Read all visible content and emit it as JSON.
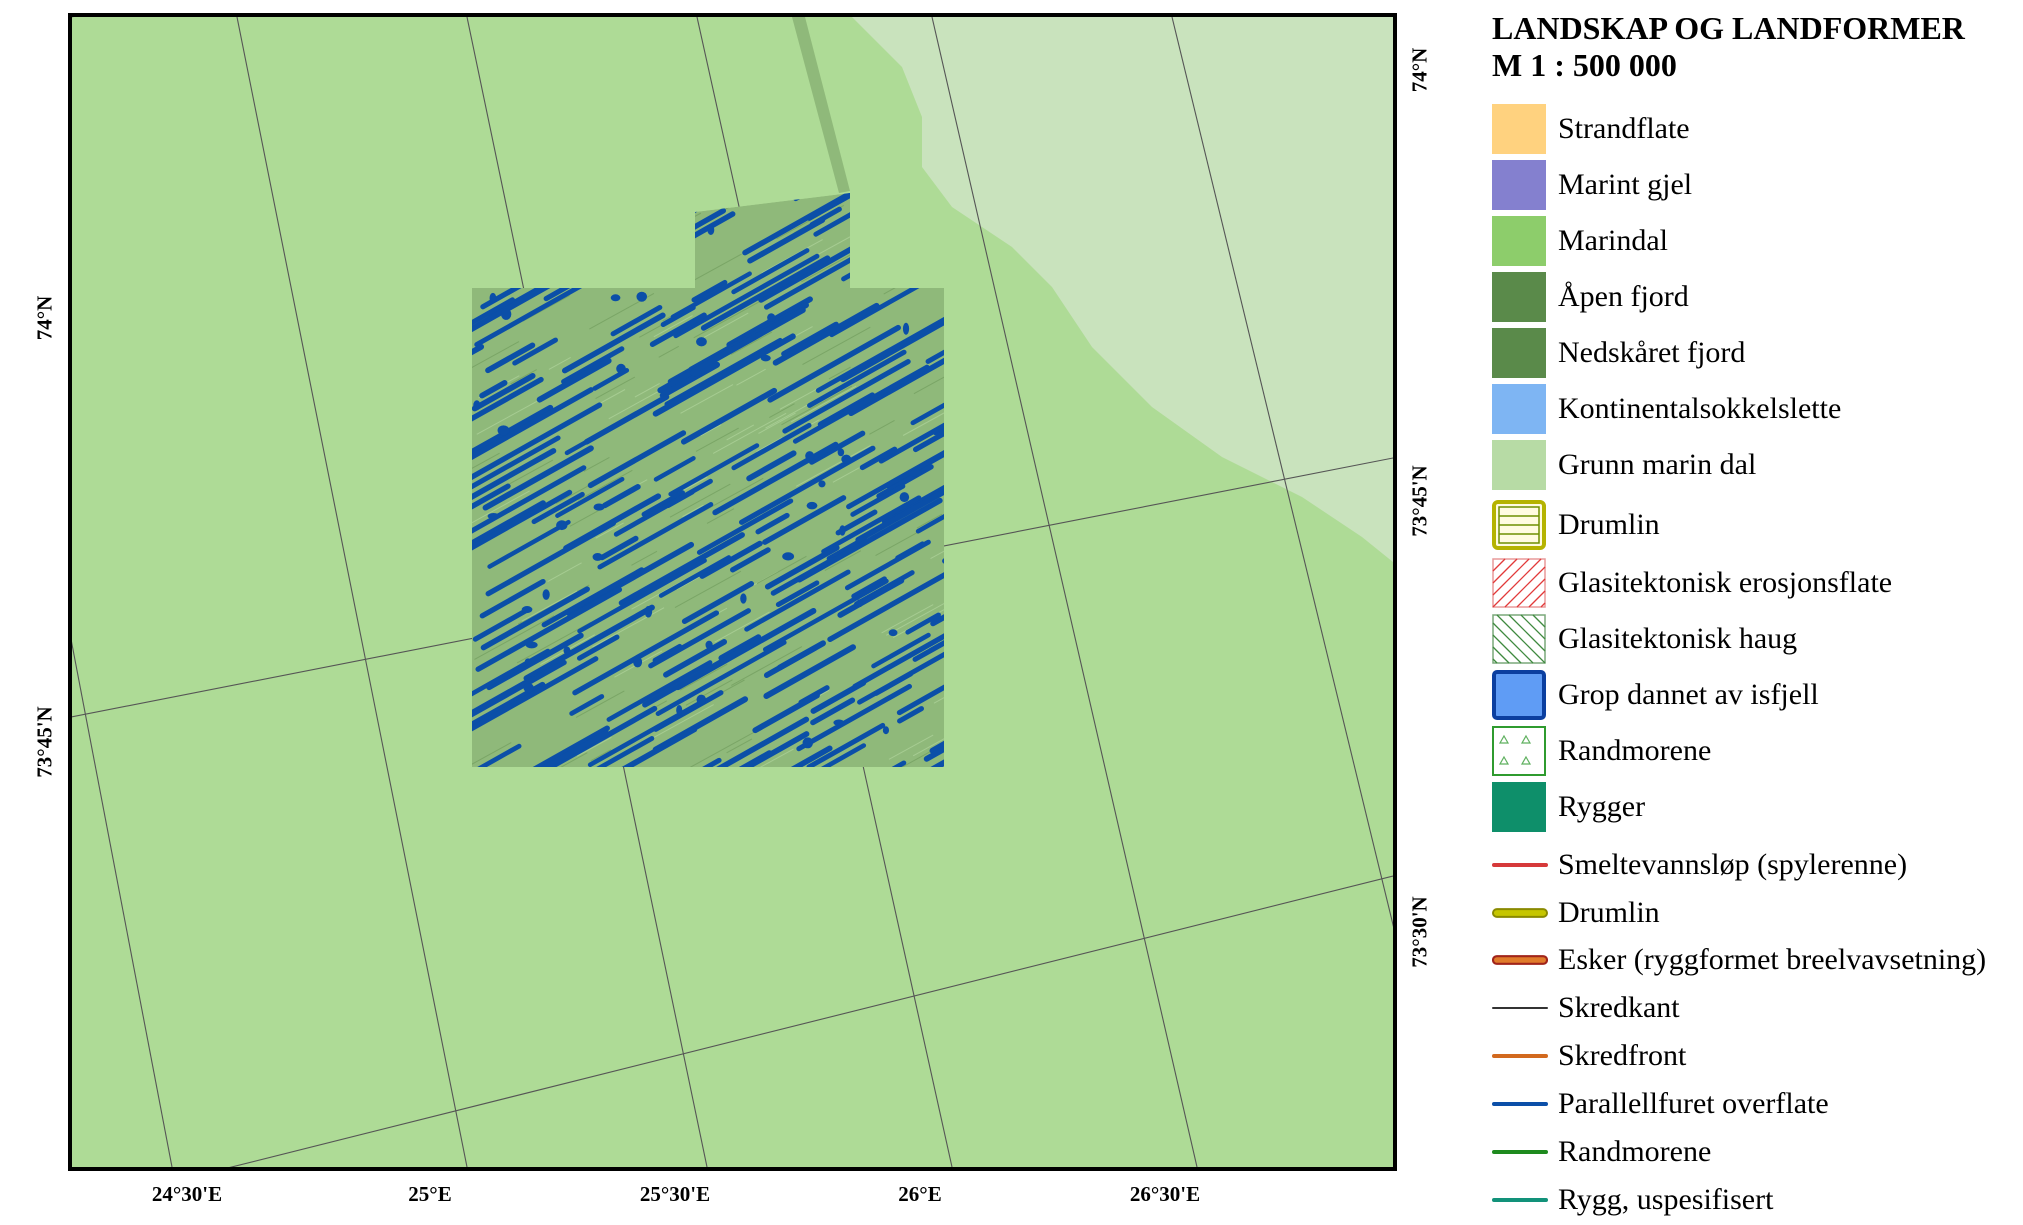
{
  "map": {
    "colors": {
      "background_shelf": "#aedb96",
      "shallow_valley": "#c9e3bd",
      "survey_relief": "#8fb97a",
      "furrows": "#0b4fa8",
      "graticule": "#555555"
    },
    "latitude_labels_left": [
      "74°N",
      "73°45'N"
    ],
    "latitude_labels_right": [
      "74°N",
      "73°45'N",
      "73°30'N"
    ],
    "longitude_labels": [
      "24°30'E",
      "25°E",
      "25°30'E",
      "26°E",
      "26°30'E"
    ]
  },
  "legend": {
    "title_line1": "LANDSKAP OG LANDFORMER",
    "title_line2": "M 1 : 500 000",
    "items": [
      {
        "label": "Strandflate",
        "color": "#ffd27f",
        "icon": "fill-swatch"
      },
      {
        "label": "Marint gjel",
        "color": "#8480cf",
        "icon": "fill-swatch"
      },
      {
        "label": "Marindal",
        "color": "#8dcd6b",
        "icon": "fill-swatch"
      },
      {
        "label": "Åpen fjord",
        "color": "#5a8a4a",
        "icon": "fill-swatch"
      },
      {
        "label": "Nedskåret fjord",
        "color": "#5a8a4a",
        "icon": "fill-swatch"
      },
      {
        "label": "Kontinentalsokkelslette",
        "color": "#7eb5f3",
        "icon": "fill-swatch"
      },
      {
        "label": "Grunn marin dal",
        "color": "#b7dba5",
        "icon": "fill-swatch"
      },
      {
        "label": "Drumlin",
        "color": "#b5b300",
        "icon": "drumlin-hatch-swatch"
      },
      {
        "label": "Glasitektonisk erosjonsflate",
        "color": "#e23a3a",
        "icon": "red-hatch-swatch"
      },
      {
        "label": "Glasitektonisk haug",
        "color": "#3f8a3f",
        "icon": "green-hatch-swatch"
      },
      {
        "label": "Grop dannet av isfjell",
        "color": "#5f9cf5",
        "icon": "blue-box-swatch"
      },
      {
        "label": "Randmorene",
        "color": "#2f9b2f",
        "icon": "triangle-swatch"
      },
      {
        "label": "Rygger",
        "color": "#0e8f6a",
        "icon": "fill-swatch"
      },
      {
        "label": "Smeltevannsløp (spylerenne)",
        "color": "#d6393a",
        "icon": "line-swatch"
      },
      {
        "label": "Drumlin",
        "color": "#b5b300",
        "icon": "drumlin-line-swatch"
      },
      {
        "label": "Esker (ryggformet breelvavsetning)",
        "color": "#c0392b",
        "icon": "esker-line-swatch"
      },
      {
        "label": "Skredkant",
        "color": "#333333",
        "icon": "line-swatch"
      },
      {
        "label": "Skredfront",
        "color": "#d2691e",
        "icon": "line-swatch"
      },
      {
        "label": "Parallellfuret overflate",
        "color": "#0b4fa8",
        "icon": "line-swatch"
      },
      {
        "label": "Randmorene",
        "color": "#1e8a1e",
        "icon": "line-swatch"
      },
      {
        "label": "Rygg, uspesifisert",
        "color": "#12927a",
        "icon": "line-swatch"
      }
    ]
  }
}
